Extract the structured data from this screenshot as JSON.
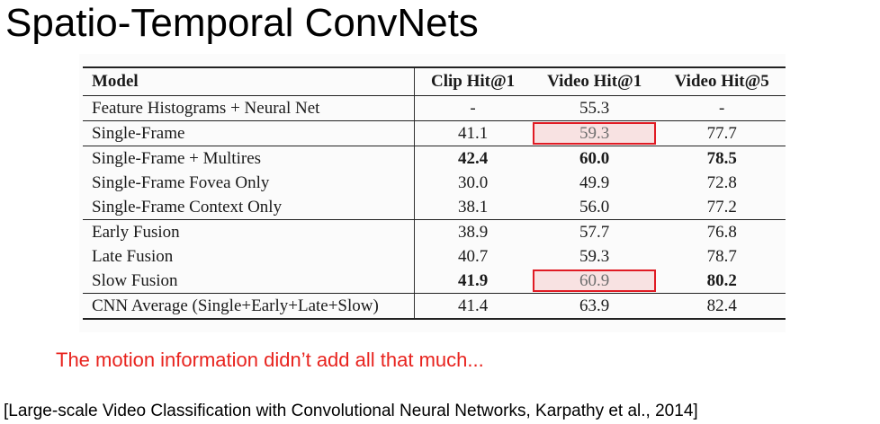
{
  "slide": {
    "title": "Spatio-Temporal ConvNets",
    "remark": "The motion information didn’t add all that much...",
    "citation": "[Large-scale Video Classification with Convolutional Neural Networks, Karpathy et al., 2014]"
  },
  "table": {
    "headers": [
      "Model",
      "Clip Hit@1",
      "Video Hit@1",
      "Video Hit@5"
    ],
    "rows": [
      [
        "Feature Histograms + Neural Net",
        "-",
        "55.3",
        "-"
      ],
      [
        "Single-Frame",
        "41.1",
        "59.3",
        "77.7"
      ],
      [
        "Single-Frame + Multires",
        "42.4",
        "60.0",
        "78.5"
      ],
      [
        "Single-Frame Fovea Only",
        "30.0",
        "49.9",
        "72.8"
      ],
      [
        "Single-Frame Context Only",
        "38.1",
        "56.0",
        "77.2"
      ],
      [
        "Early Fusion",
        "38.9",
        "57.7",
        "76.8"
      ],
      [
        "Late Fusion",
        "40.7",
        "59.3",
        "78.7"
      ],
      [
        "Slow Fusion",
        "41.9",
        "60.9",
        "80.2"
      ],
      [
        "CNN Average (Single+Early+Late+Slow)",
        "41.4",
        "63.9",
        "82.4"
      ]
    ],
    "highlight_color": "#e01b24"
  },
  "colors": {
    "remark": "#e8231e"
  }
}
